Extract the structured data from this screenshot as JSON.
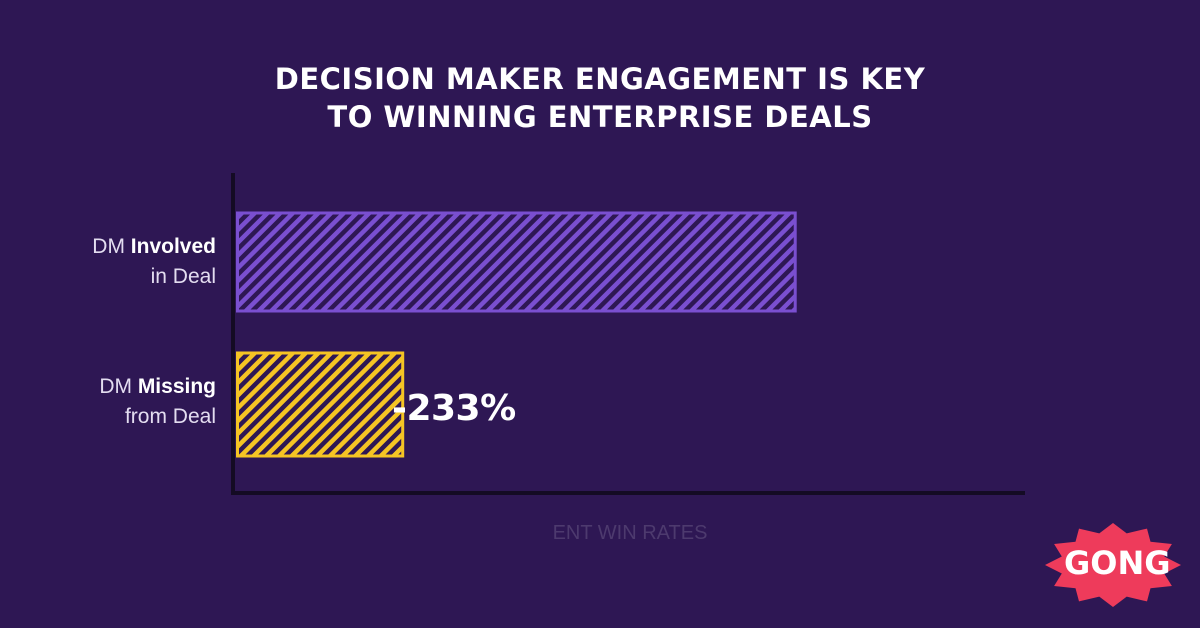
{
  "chart_data": {
    "type": "bar",
    "orientation": "horizontal",
    "title_lines": [
      "DECISION MAKER ENGAGEMENT IS KEY",
      "TO WINNING ENTERPRISE DEALS"
    ],
    "categories": [
      {
        "prefix": "DM ",
        "bold": "Involved",
        "line2": "in Deal"
      },
      {
        "prefix": "DM ",
        "bold": "Missing",
        "line2": "from Deal"
      }
    ],
    "values": [
      100,
      30
    ],
    "bar_colors": [
      "#7a4fd0",
      "#f5c424"
    ],
    "annotation": "-233%",
    "xlabel": "ENT WIN RATES",
    "xlim": [
      0,
      140
    ],
    "grid": false,
    "tick_labels": false
  },
  "logo": {
    "text": "GONG",
    "color": "#ee3b5b"
  }
}
